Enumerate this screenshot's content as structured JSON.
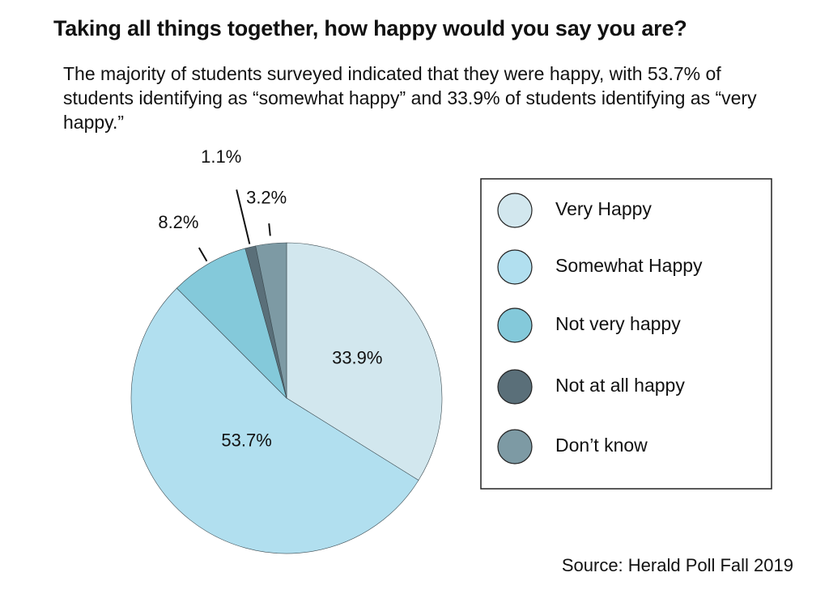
{
  "chart_data": {
    "type": "pie",
    "title": "Taking all things together, how happy would you say you are?",
    "subtitle": "The majority of students surveyed indicated that they were happy, with 53.7% of students identifying as “somewhat happy” and 33.9% of students identifying as “very happy.”",
    "categories": [
      "Very Happy",
      "Somewhat Happy",
      "Not very happy",
      "Not at all happy",
      "Don’t know"
    ],
    "values": [
      33.9,
      53.7,
      8.2,
      1.1,
      3.2
    ],
    "value_labels": [
      "33.9%",
      "53.7%",
      "8.2%",
      "1.1%",
      "3.2%"
    ],
    "colors": [
      "#d2e7ee",
      "#b1dfef",
      "#84c9da",
      "#5a6f79",
      "#7d9aa4"
    ],
    "legend": "right",
    "source": "Source: Herald Poll Fall 2019"
  }
}
